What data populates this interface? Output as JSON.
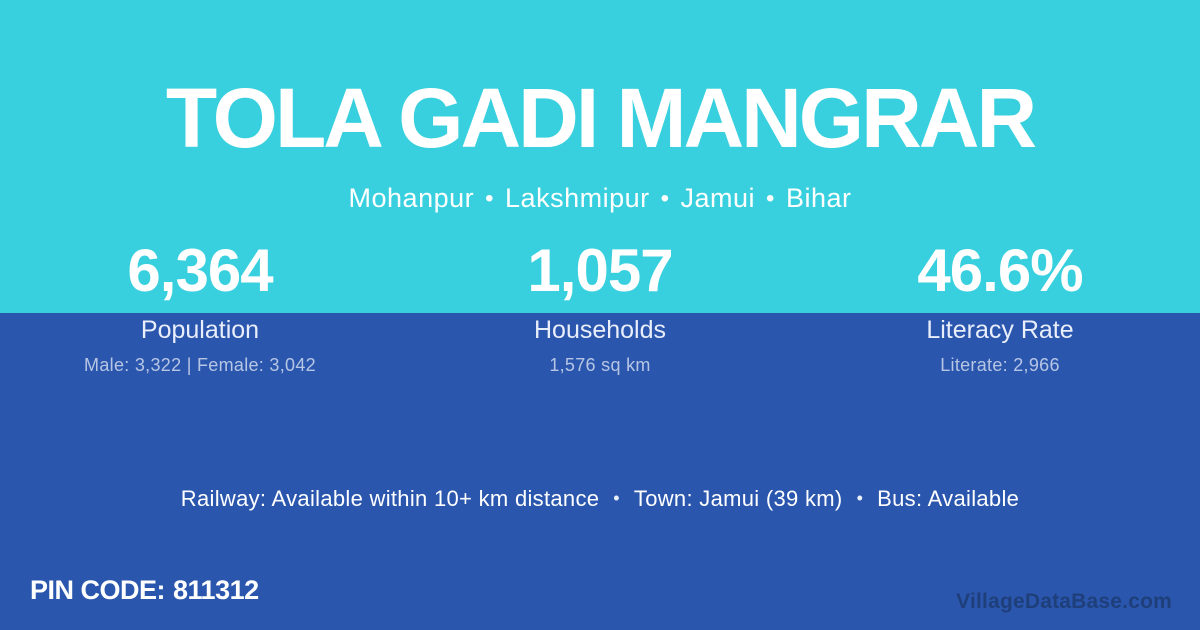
{
  "colors": {
    "top_bg": "#38d0de",
    "bottom_bg": "#2a56ae",
    "text_main": "#ffffff"
  },
  "header": {
    "title": "TOLA GADI MANGRAR",
    "breadcrumb": {
      "separator": "•",
      "items": [
        "Mohanpur",
        "Lakshmipur",
        "Jamui",
        "Bihar"
      ]
    }
  },
  "stats": [
    {
      "value": "6,364",
      "label": "Population",
      "detail": "Male: 3,322 | Female: 3,042"
    },
    {
      "value": "1,057",
      "label": "Households",
      "detail": "1,576 sq km"
    },
    {
      "value": "46.6%",
      "label": "Literacy Rate",
      "detail": "Literate: 2,966"
    }
  ],
  "transport": {
    "separator": "•",
    "railway": "Railway: Available within 10+ km distance",
    "town": "Town: Jamui (39 km)",
    "bus": "Bus: Available"
  },
  "footer": {
    "pin_label": "PIN CODE:",
    "pin_value": "811312",
    "watermark": "VillageDataBase.com"
  }
}
